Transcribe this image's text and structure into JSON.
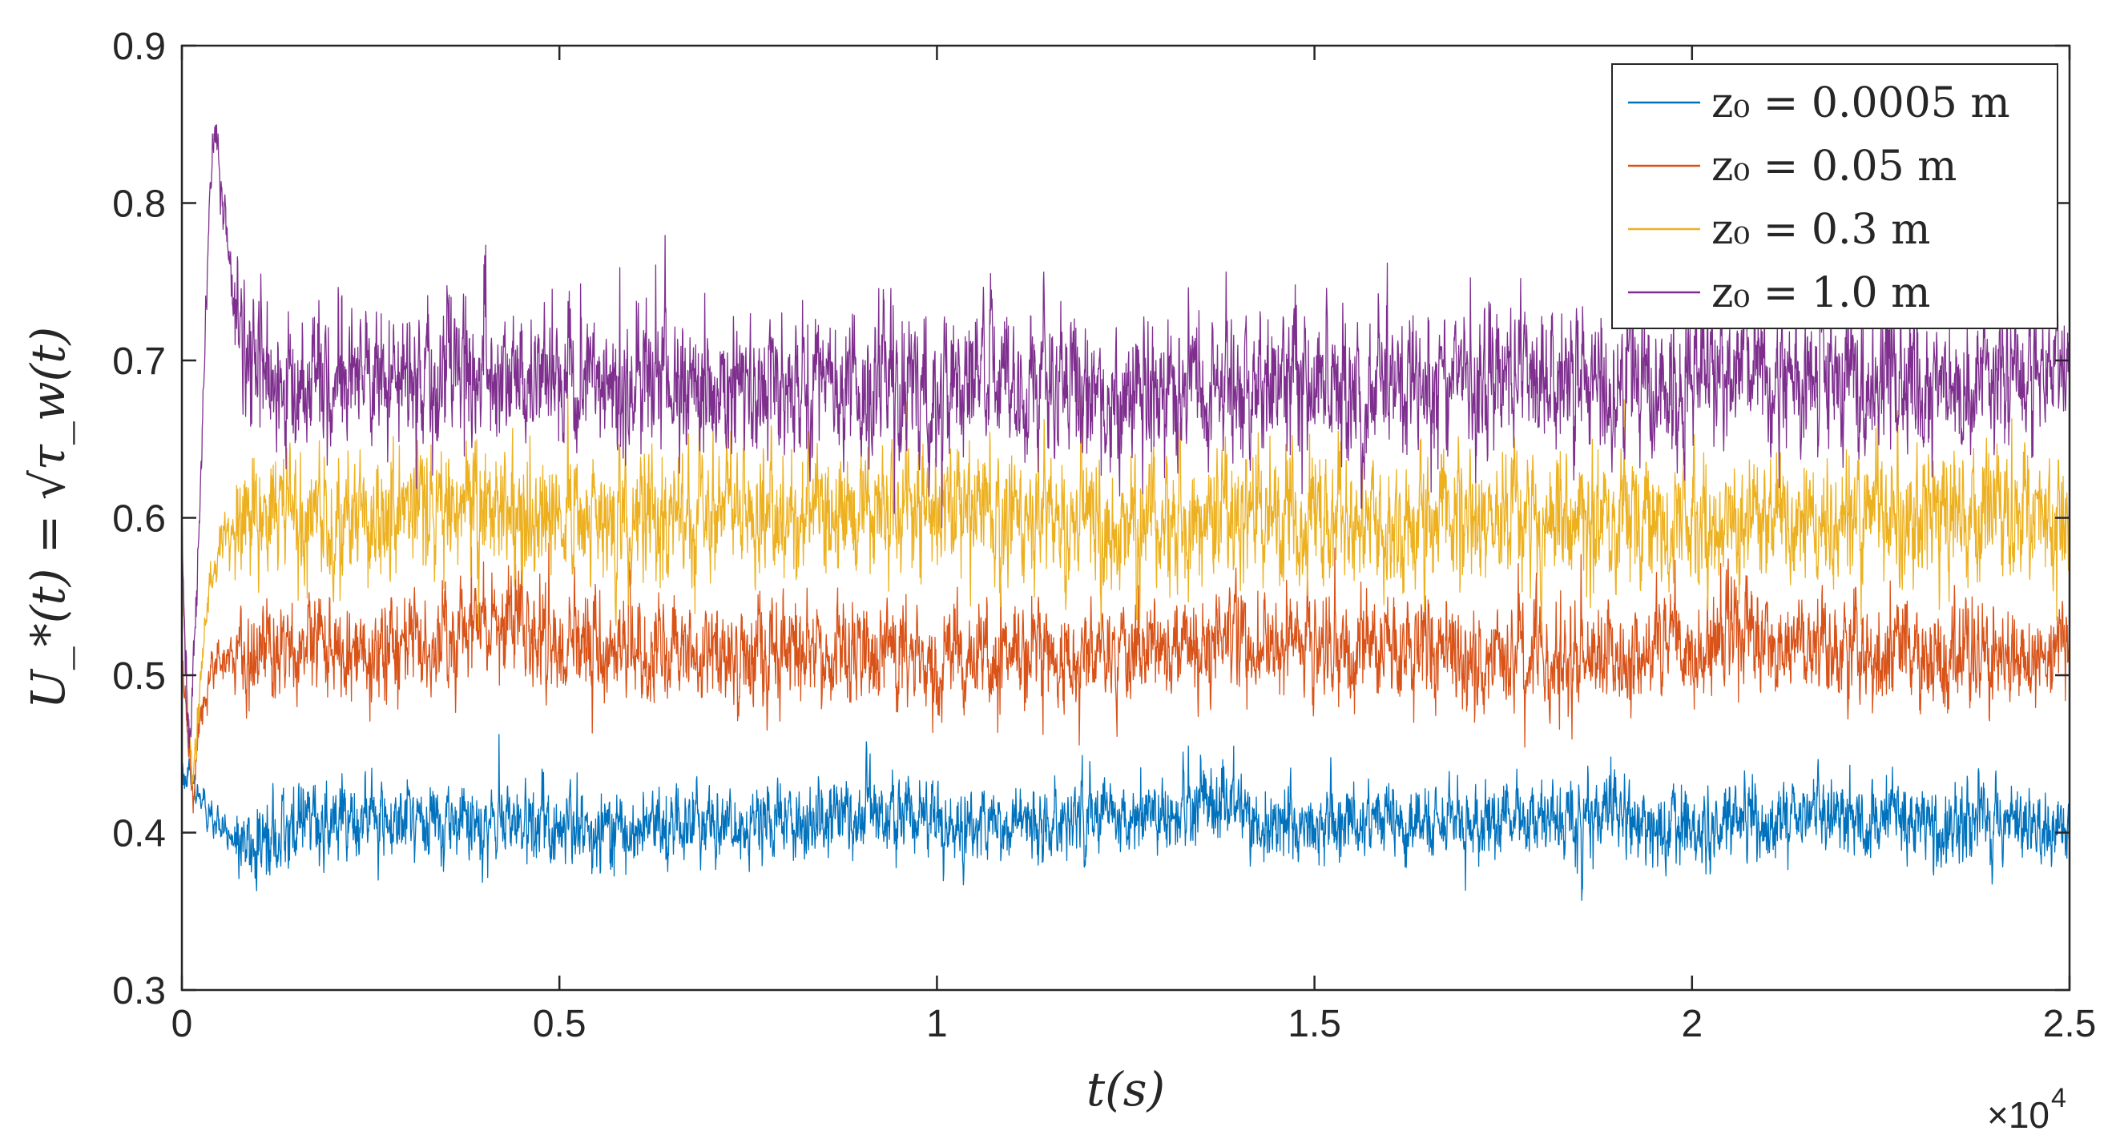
{
  "chart_data": {
    "type": "line",
    "title": "",
    "xlabel": "t(s)",
    "ylabel": "U_*(t) = √τ_w(t)",
    "xlim": [
      0,
      25000
    ],
    "ylim": [
      0.3,
      0.9
    ],
    "x_tick_values": [
      0,
      5000,
      10000,
      15000,
      20000,
      25000
    ],
    "x_tick_labels": [
      "0",
      "0.5",
      "1",
      "1.5",
      "2",
      "2.5"
    ],
    "x_exponent_label": "×10",
    "x_exponent_power": "4",
    "y_tick_values": [
      0.3,
      0.4,
      0.5,
      0.6,
      0.7,
      0.8,
      0.9
    ],
    "y_tick_labels": [
      "0.3",
      "0.4",
      "0.5",
      "0.6",
      "0.7",
      "0.8",
      "0.9"
    ],
    "grid": false,
    "legend_position": "top-right",
    "series": [
      {
        "name": "z₀ = 0.0005 m",
        "color": "#0072BD",
        "mean": 0.405,
        "noise_amplitude": 0.012,
        "x": [
          0,
          150,
          400,
          800,
          1500,
          3000,
          5000,
          7000,
          9000,
          11000,
          12700,
          14100,
          14300,
          16000,
          18000,
          20000,
          22000,
          24000,
          25000
        ],
        "y": [
          0.44,
          0.43,
          0.405,
          0.39,
          0.405,
          0.41,
          0.405,
          0.405,
          0.41,
          0.405,
          0.41,
          0.42,
          0.405,
          0.405,
          0.41,
          0.405,
          0.41,
          0.405,
          0.4
        ]
      },
      {
        "name": "z₀ = 0.05 m",
        "color": "#D95319",
        "mean": 0.515,
        "noise_amplitude": 0.016,
        "x": [
          0,
          100,
          150,
          250,
          400,
          1000,
          3000,
          4200,
          6000,
          8000,
          10000,
          12000,
          14000,
          16000,
          18000,
          20000,
          20700,
          22000,
          24000,
          25000
        ],
        "y": [
          0.51,
          0.45,
          0.43,
          0.47,
          0.51,
          0.515,
          0.52,
          0.53,
          0.515,
          0.515,
          0.51,
          0.515,
          0.52,
          0.515,
          0.51,
          0.52,
          0.525,
          0.515,
          0.51,
          0.51
        ]
      },
      {
        "name": "z₀ = 0.3 m",
        "color": "#EDB120",
        "mean": 0.6,
        "noise_amplitude": 0.02,
        "x": [
          0,
          100,
          150,
          250,
          400,
          800,
          2000,
          4000,
          6000,
          8000,
          10000,
          12000,
          14000,
          16000,
          18000,
          20000,
          22000,
          24000,
          25000
        ],
        "y": [
          0.56,
          0.46,
          0.44,
          0.5,
          0.57,
          0.6,
          0.6,
          0.605,
          0.6,
          0.6,
          0.605,
          0.6,
          0.6,
          0.6,
          0.6,
          0.6,
          0.6,
          0.6,
          0.6
        ]
      },
      {
        "name": "z₀ = 1.0 m",
        "color": "#7E2F8E",
        "mean": 0.685,
        "noise_amplitude": 0.022,
        "x": [
          0,
          60,
          120,
          200,
          300,
          380,
          450,
          550,
          700,
          900,
          1200,
          3000,
          5000,
          7000,
          9000,
          11000,
          13000,
          15000,
          17000,
          19000,
          21000,
          23000,
          25000
        ],
        "y": [
          0.6,
          0.48,
          0.46,
          0.55,
          0.7,
          0.82,
          0.84,
          0.79,
          0.74,
          0.7,
          0.685,
          0.69,
          0.685,
          0.68,
          0.685,
          0.685,
          0.68,
          0.685,
          0.685,
          0.685,
          0.69,
          0.685,
          0.69
        ]
      }
    ]
  }
}
